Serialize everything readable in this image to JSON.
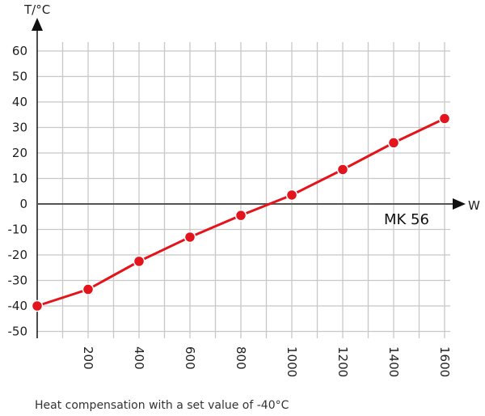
{
  "chart_data": {
    "type": "line",
    "title": "",
    "xlabel": "W",
    "ylabel": "T/°C",
    "annotation": "MK 56",
    "caption": "Heat compensation with a set value of -40°C",
    "xlim": [
      0,
      1600
    ],
    "ylim": [
      -50,
      60
    ],
    "x_ticks": [
      200,
      400,
      600,
      800,
      1000,
      1200,
      1400,
      1600
    ],
    "y_ticks": [
      60,
      50,
      40,
      30,
      20,
      10,
      0,
      -10,
      -20,
      -30,
      -40,
      -50
    ],
    "grid": true,
    "x_grid_step": 100,
    "series": [
      {
        "x": [
          0,
          200,
          400,
          600,
          800,
          1000,
          1200,
          1400,
          1600
        ],
        "values": [
          -40,
          -33.5,
          -22.5,
          -13,
          -4.5,
          3.5,
          13.5,
          24,
          33.5
        ],
        "color": "#e3141b"
      }
    ]
  }
}
